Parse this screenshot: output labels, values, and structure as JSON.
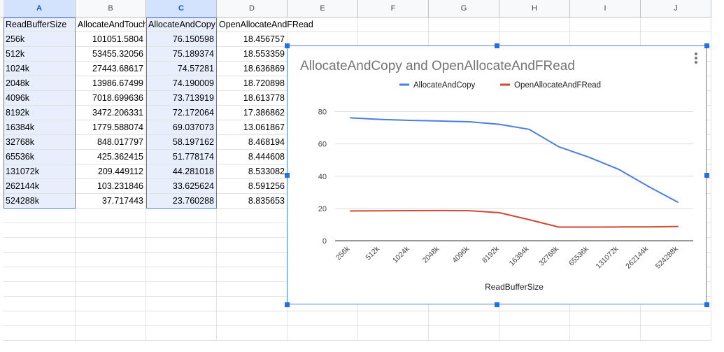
{
  "columns": [
    "A",
    "B",
    "C",
    "D",
    "E",
    "F",
    "G",
    "H",
    "I",
    "J"
  ],
  "header_row": [
    "ReadBufferSize",
    "AllocateAndTouch",
    "AllocateAndCopy",
    "OpenAllocateAndFRead"
  ],
  "rows": [
    [
      "256k",
      "101051.5804",
      "76.150598",
      "18.456757"
    ],
    [
      "512k",
      "53455.32056",
      "75.189374",
      "18.553359"
    ],
    [
      "1024k",
      "27443.68617",
      "74.57281",
      "18.636869"
    ],
    [
      "2048k",
      "13986.67499",
      "74.190009",
      "18.720898"
    ],
    [
      "4096k",
      "7018.699636",
      "73.713919",
      "18.613778"
    ],
    [
      "8192k",
      "3472.206331",
      "72.172064",
      "17.386862"
    ],
    [
      "16384k",
      "1779.588074",
      "69.037073",
      "13.061867"
    ],
    [
      "32768k",
      "848.017797",
      "58.197162",
      "8.468194"
    ],
    [
      "65536k",
      "425.362415",
      "51.778174",
      "8.444608"
    ],
    [
      "131072k",
      "209.449112",
      "44.281018",
      "8.533082"
    ],
    [
      "262144k",
      "103.231846",
      "33.625624",
      "8.591256"
    ],
    [
      "524288k",
      "37.717443",
      "23.760288",
      "8.835653"
    ]
  ],
  "chart_data": {
    "type": "line",
    "title": "AllocateAndCopy and OpenAllocateAndFRead",
    "xlabel": "ReadBufferSize",
    "ylabel": "",
    "categories": [
      "256k",
      "512k",
      "1024k",
      "2048k",
      "4096k",
      "8192k",
      "16384k",
      "32768k",
      "65536k",
      "131072k",
      "262144k",
      "524288k"
    ],
    "yticks": [
      0,
      20,
      40,
      60,
      80
    ],
    "ylim": [
      0,
      85
    ],
    "grid": true,
    "legend_position": "top",
    "series": [
      {
        "name": "AllocateAndCopy",
        "color": "#4a7ee0",
        "values": [
          76.150598,
          75.189374,
          74.57281,
          74.190009,
          73.713919,
          72.172064,
          69.037073,
          58.197162,
          51.778174,
          44.281018,
          33.625624,
          23.760288
        ]
      },
      {
        "name": "OpenAllocateAndFRead",
        "color": "#d04a33",
        "values": [
          18.456757,
          18.553359,
          18.636869,
          18.720898,
          18.613778,
          17.386862,
          13.061867,
          8.468194,
          8.444608,
          8.533082,
          8.591256,
          8.835653
        ]
      }
    ]
  }
}
